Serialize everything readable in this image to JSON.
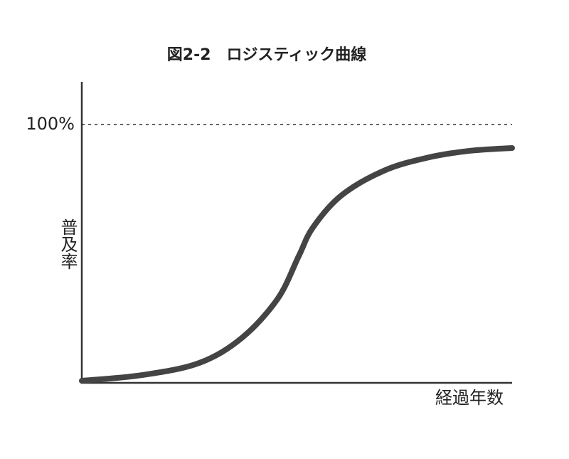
{
  "chart_data": {
    "type": "line",
    "title": "図2-2　ロジスティック曲線",
    "x_label": "経過年数",
    "y_label": "普及率",
    "x": [
      0,
      14.0,
      27.3,
      37.2,
      45.5,
      50.4,
      53.7,
      60.3,
      70.2,
      80.2,
      90.1,
      100
    ],
    "series": [
      {
        "color": "#444444",
        "values": [
          0.8,
          3.0,
          7.7,
          17.4,
          32.5,
          49.0,
          60.1,
          72.5,
          82.1,
          87.1,
          89.8,
          90.9
        ]
      }
    ],
    "xlim": [
      0,
      100
    ],
    "ylim": [
      0,
      116.5
    ],
    "yticks": [
      {
        "value": 100,
        "label": "100%"
      }
    ],
    "grid": true
  }
}
